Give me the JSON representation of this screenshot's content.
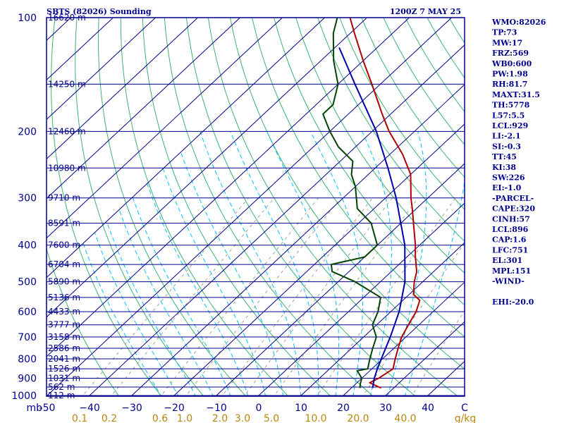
{
  "chart_data": {
    "type": "line",
    "title": "SBTS (82026) Sounding",
    "valid_time": "1200Z  7 MAY 25",
    "y_axis": {
      "label": "mb",
      "scale": "log",
      "range": [
        1000,
        100
      ],
      "ticks": [
        100,
        200,
        300,
        400,
        500,
        600,
        700,
        800,
        900,
        1000
      ]
    },
    "x_axis": {
      "unit": "C",
      "range": [
        -50,
        50
      ],
      "skew": true,
      "ticks": [
        -50,
        -40,
        -30,
        -20,
        -10,
        0,
        10,
        20,
        30,
        40
      ]
    },
    "x_tick_labels": [
      "-50",
      "−40",
      "−30",
      "−20",
      "−10",
      "0",
      "10",
      "20",
      "30",
      "40"
    ],
    "mixing_ratio_labels": [
      "0.1",
      "0.2",
      "0.6",
      "1.0",
      "2.0",
      "3.0",
      "5.0",
      "10.0",
      "20.0",
      "40.0"
    ],
    "mixing_ratio_unit": "g/kg",
    "heights": [
      {
        "p": 100,
        "label": "16620 m"
      },
      {
        "p": 150,
        "label": "14250 m"
      },
      {
        "p": 200,
        "label": "12460 m"
      },
      {
        "p": 250,
        "label": "10980 m"
      },
      {
        "p": 300,
        "label": "9710 m"
      },
      {
        "p": 350,
        "label": "8591 m"
      },
      {
        "p": 400,
        "label": "7600 m"
      },
      {
        "p": 450,
        "label": "6704 m"
      },
      {
        "p": 500,
        "label": "5890 m"
      },
      {
        "p": 550,
        "label": "5136 m"
      },
      {
        "p": 600,
        "label": "4433 m"
      },
      {
        "p": 650,
        "label": "3777 m"
      },
      {
        "p": 700,
        "label": "3158 m"
      },
      {
        "p": 750,
        "label": "2586 m"
      },
      {
        "p": 800,
        "label": "2041 m"
      },
      {
        "p": 850,
        "label": "1526 m"
      },
      {
        "p": 900,
        "label": "1031 m"
      },
      {
        "p": 950,
        "label": "562 m"
      },
      {
        "p": 1000,
        "label": "112 m"
      }
    ],
    "series": [
      {
        "kind": "temperature",
        "color": "#b00000",
        "points": [
          [
            955,
            27
          ],
          [
            940,
            25
          ],
          [
            925,
            23
          ],
          [
            900,
            24
          ],
          [
            850,
            25
          ],
          [
            800,
            23
          ],
          [
            750,
            21
          ],
          [
            700,
            19
          ],
          [
            650,
            17.5
          ],
          [
            600,
            16
          ],
          [
            560,
            14
          ],
          [
            540,
            11
          ],
          [
            500,
            8
          ],
          [
            470,
            6
          ],
          [
            430,
            2
          ],
          [
            400,
            -1
          ],
          [
            350,
            -7
          ],
          [
            320,
            -11
          ],
          [
            300,
            -14
          ],
          [
            260,
            -20
          ],
          [
            230,
            -27
          ],
          [
            200,
            -36
          ],
          [
            180,
            -42
          ],
          [
            150,
            -52
          ],
          [
            130,
            -60
          ],
          [
            110,
            -69
          ],
          [
            100,
            -74
          ]
        ]
      },
      {
        "kind": "dewpoint",
        "color": "#004400",
        "points": [
          [
            955,
            22
          ],
          [
            930,
            21
          ],
          [
            900,
            20
          ],
          [
            860,
            17
          ],
          [
            850,
            19
          ],
          [
            800,
            17
          ],
          [
            750,
            15
          ],
          [
            700,
            13
          ],
          [
            650,
            9
          ],
          [
            600,
            7
          ],
          [
            550,
            4
          ],
          [
            500,
            -6
          ],
          [
            470,
            -14
          ],
          [
            450,
            -16
          ],
          [
            430,
            -10
          ],
          [
            400,
            -10
          ],
          [
            350,
            -17
          ],
          [
            320,
            -24
          ],
          [
            280,
            -30
          ],
          [
            260,
            -34
          ],
          [
            240,
            -37
          ],
          [
            220,
            -44
          ],
          [
            200,
            -50
          ],
          [
            180,
            -56
          ],
          [
            170,
            -56
          ],
          [
            150,
            -60
          ],
          [
            130,
            -67
          ],
          [
            110,
            -74
          ],
          [
            100,
            -77
          ]
        ]
      },
      {
        "kind": "parcel",
        "color": "#0000aa",
        "points": [
          [
            955,
            25
          ],
          [
            896,
            22.8
          ],
          [
            850,
            21.3
          ],
          [
            800,
            19.7
          ],
          [
            700,
            16.3
          ],
          [
            600,
            12
          ],
          [
            500,
            5.8
          ],
          [
            400,
            -3.5
          ],
          [
            300,
            -17.5
          ],
          [
            250,
            -27
          ],
          [
            200,
            -39
          ],
          [
            150,
            -56
          ],
          [
            120,
            -69
          ]
        ]
      }
    ]
  },
  "indices": [
    "WMO:82026",
    "TP:73",
    "MW:17",
    "FRZ:569",
    "WB0:600",
    "PW:1.98",
    "RH:81.7",
    "MAXT:31.5",
    "TH:5778",
    "L57:5.5",
    "LCL:929",
    "LI:-2.1",
    "SI:-0.3",
    "TT:45",
    "KI:38",
    "SW:226",
    "EI:-1.0",
    "-PARCEL-",
    "CAPE:320",
    "CINH:57",
    "LCL:896",
    "CAP:1.6",
    "LFC:751",
    "EL:301",
    "MPL:151",
    "-WIND-",
    "",
    "EHI:-20.0"
  ],
  "colors": {
    "frame": "#00008b",
    "isobar": "#00008b",
    "isotherm": "#00008b",
    "dry_adiabat": "#3cb371",
    "moist_adiabat": "#00bfff",
    "mixing_ratio": "#a0a090",
    "text": "#00008b",
    "mixing_label": "#b8860b"
  }
}
